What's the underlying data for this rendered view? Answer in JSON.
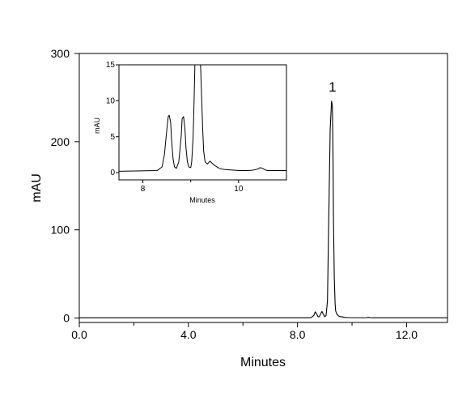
{
  "chart_data": [
    {
      "type": "line",
      "xlabel": "Minutes",
      "ylabel": "mAU",
      "xlim": [
        0,
        13.5
      ],
      "ylim": [
        -5,
        300
      ],
      "x_ticks": [
        0,
        4,
        8,
        12
      ],
      "x_tick_labels": [
        "0.0",
        "4.0",
        "8.0",
        "12.0"
      ],
      "x_minor_ticks": [
        2,
        6,
        10
      ],
      "y_ticks": [
        0,
        100,
        200,
        300
      ],
      "y_tick_labels": [
        "0",
        "100",
        "200",
        "300"
      ],
      "grid": false,
      "series": [
        {
          "color": "#000000",
          "x": [
            0,
            8.4,
            8.5,
            8.6,
            8.65,
            8.7,
            8.75,
            8.8,
            8.85,
            8.9,
            8.95,
            9.0,
            9.05,
            9.1,
            9.15,
            9.2,
            9.25,
            9.28,
            9.3,
            9.32,
            9.35,
            9.38,
            9.4,
            9.45,
            9.5,
            9.55,
            9.6,
            9.7,
            9.8,
            9.9,
            10.0,
            10.5,
            10.6,
            10.7,
            10.8,
            13.5
          ],
          "y": [
            0.3,
            0.3,
            0.6,
            3,
            7,
            5,
            1.5,
            1.5,
            5,
            7.5,
            4,
            1.5,
            3,
            20,
            120,
            215,
            246,
            240,
            190,
            110,
            45,
            16,
            8,
            4,
            2.5,
            1.8,
            1.5,
            0.9,
            0.6,
            0.5,
            0.4,
            0.4,
            0.8,
            0.4,
            0.3,
            0.3
          ]
        }
      ],
      "annotations": [
        {
          "text": "1",
          "x": 9.28,
          "y": 246
        }
      ]
    },
    {
      "type": "line",
      "xlabel": "Minutes",
      "ylabel": "mAU",
      "xlim": [
        7.5,
        11.0
      ],
      "ylim": [
        -1,
        15
      ],
      "x_ticks": [
        8,
        10
      ],
      "x_tick_labels": [
        "8",
        "10"
      ],
      "x_minor_ticks": [
        9
      ],
      "y_ticks": [
        0,
        5,
        10,
        15
      ],
      "y_tick_labels": [
        "0",
        "5",
        "10",
        "15"
      ],
      "grid": false,
      "series": [
        {
          "color": "#000000",
          "x": [
            7.5,
            8.3,
            8.4,
            8.45,
            8.5,
            8.53,
            8.55,
            8.58,
            8.6,
            8.63,
            8.66,
            8.7,
            8.75,
            8.8,
            8.82,
            8.85,
            8.88,
            8.9,
            8.93,
            8.96,
            9.0,
            9.02,
            9.05,
            9.07,
            9.09,
            9.2,
            9.25,
            9.27,
            9.3,
            9.35,
            9.4,
            9.45,
            9.5,
            9.55,
            9.6,
            9.65,
            9.7,
            9.8,
            9.9,
            10.0,
            10.2,
            10.3,
            10.4,
            10.45,
            10.5,
            10.55,
            10.6,
            10.7,
            11.0
          ],
          "y": [
            0.2,
            0.3,
            0.8,
            2.5,
            6,
            7.8,
            8,
            7,
            4.5,
            2,
            0.8,
            0.6,
            1.5,
            5,
            7.5,
            7.8,
            6,
            3.5,
            1.5,
            0.8,
            0.7,
            1.5,
            5,
            10,
            16,
            16,
            6,
            3,
            1.5,
            1.2,
            1.6,
            1.3,
            1.0,
            0.8,
            0.6,
            0.5,
            0.45,
            0.4,
            0.35,
            0.3,
            0.3,
            0.35,
            0.5,
            0.7,
            0.6,
            0.4,
            0.3,
            0.3,
            0.3
          ]
        }
      ]
    }
  ]
}
